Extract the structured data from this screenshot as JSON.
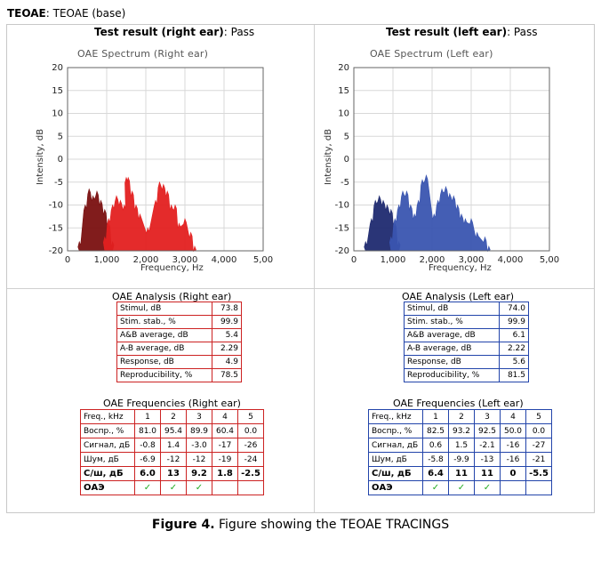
{
  "header": {
    "label": "TEOAE",
    "value": ": TEOAE (base)"
  },
  "right": {
    "result_label": "Test result (right ear)",
    "result_value": ": Pass",
    "chart_title": "OAE Spectrum (Right ear)",
    "analysis_title": "OAE Analysis (Right ear)",
    "analysis": [
      {
        "label": "Stimul, dB",
        "value": "73.8"
      },
      {
        "label": "Stim. stab., %",
        "value": "99.9"
      },
      {
        "label": "A&B average, dB",
        "value": "5.4"
      },
      {
        "label": "A-B average, dB",
        "value": "2.29"
      },
      {
        "label": "Response, dB",
        "value": "4.9"
      },
      {
        "label": "Reproducibility, %",
        "value": "78.5"
      }
    ],
    "freq_title": "OAE Frequencies (Right ear)",
    "freq_rows": [
      {
        "label": "Freq., kHz",
        "cells": [
          "1",
          "2",
          "3",
          "4",
          "5"
        ]
      },
      {
        "label": "Воспр., %",
        "cells": [
          "81.0",
          "95.4",
          "89.9",
          "60.4",
          "0.0"
        ]
      },
      {
        "label": "Сигнал, дБ",
        "cells": [
          "-0.8",
          "1.4",
          "-3.0",
          "-17",
          "-26"
        ]
      },
      {
        "label": "Шум, дБ",
        "cells": [
          "-6.9",
          "-12",
          "-12",
          "-19",
          "-24"
        ]
      },
      {
        "label": "С/ш, дБ",
        "cells": [
          "6.0",
          "13",
          "9.2",
          "1.8",
          "-2.5"
        ]
      },
      {
        "label": "ОАЭ",
        "cells": [
          "✓",
          "✓",
          "✓",
          "",
          ""
        ]
      }
    ]
  },
  "left": {
    "result_label": "Test result (left ear)",
    "result_value": ": Pass",
    "chart_title": "OAE Spectrum (Left ear)",
    "analysis_title": "OAE Analysis (Left ear)",
    "analysis": [
      {
        "label": "Stimul, dB",
        "value": "74.0"
      },
      {
        "label": "Stim. stab., %",
        "value": "99.9"
      },
      {
        "label": "A&B average, dB",
        "value": "6.1"
      },
      {
        "label": "A-B average, dB",
        "value": "2.22"
      },
      {
        "label": "Response, dB",
        "value": "5.6"
      },
      {
        "label": "Reproducibility, %",
        "value": "81.5"
      }
    ],
    "freq_title": "OAE Frequencies (Left ear)",
    "freq_rows": [
      {
        "label": "Freq., kHz",
        "cells": [
          "1",
          "2",
          "3",
          "4",
          "5"
        ]
      },
      {
        "label": "Воспр., %",
        "cells": [
          "82.5",
          "93.2",
          "92.5",
          "50.0",
          "0.0"
        ]
      },
      {
        "label": "Сигнал, дБ",
        "cells": [
          "0.6",
          "1.5",
          "-2.1",
          "-16",
          "-27"
        ]
      },
      {
        "label": "Шум, дБ",
        "cells": [
          "-5.8",
          "-9.9",
          "-13",
          "-16",
          "-21"
        ]
      },
      {
        "label": "С/ш, дБ",
        "cells": [
          "6.4",
          "11",
          "11",
          "0",
          "-5.5"
        ]
      },
      {
        "label": "ОАЭ",
        "cells": [
          "✓",
          "✓",
          "✓",
          "",
          ""
        ]
      }
    ]
  },
  "chart_data": [
    {
      "type": "area",
      "title": "OAE Spectrum (Right ear)",
      "xlabel": "Frequency, Hz",
      "ylabel": "Intensity, dB",
      "xlim": [
        0,
        5000
      ],
      "ylim": [
        -20,
        20
      ],
      "xticks": [
        "0",
        "1,000",
        "2,000",
        "3,000",
        "4,000",
        "5,00"
      ],
      "yticks": [
        "20",
        "15",
        "10",
        "5",
        "0",
        "-5",
        "-10",
        "-15",
        "-20"
      ],
      "grid": true,
      "colors": {
        "noise": "#7a1010",
        "response": "#e32020"
      },
      "series": [
        {
          "x": [
            300,
            450,
            550,
            650,
            750,
            850,
            950,
            1050,
            1150
          ],
          "values": [
            -18,
            -10,
            -6.5,
            -8,
            -7,
            -9,
            -11,
            -14,
            -18
          ]
        },
        {
          "x": [
            950,
            1050,
            1150,
            1250,
            1350,
            1450,
            1500,
            1550,
            1650,
            1750,
            1850,
            2050,
            2250,
            2350,
            2450,
            2550,
            2650,
            2750,
            2850,
            3000,
            3150,
            3250
          ],
          "values": [
            -17,
            -13,
            -10,
            -8,
            -9,
            -10,
            -4,
            -4,
            -7,
            -10,
            -12,
            -15,
            -9,
            -5,
            -5.5,
            -7,
            -10,
            -10,
            -14,
            -13,
            -16,
            -19
          ]
        }
      ]
    },
    {
      "type": "area",
      "title": "OAE Spectrum (Left ear)",
      "xlabel": "Frequency, Hz",
      "ylabel": "Intensity, dB",
      "xlim": [
        0,
        5000
      ],
      "ylim": [
        -20,
        20
      ],
      "xticks": [
        "0",
        "1,000",
        "2,000",
        "3,000",
        "4,000",
        "5,00"
      ],
      "yticks": [
        "20",
        "15",
        "10",
        "5",
        "0",
        "-5",
        "-10",
        "-15",
        "-20"
      ],
      "grid": true,
      "colors": {
        "noise": "#1f2a70",
        "response": "#3a55b0"
      },
      "series": [
        {
          "x": [
            300,
            450,
            550,
            650,
            750,
            850,
            950,
            1050,
            1150
          ],
          "values": [
            -18,
            -13,
            -9,
            -8,
            -9,
            -10,
            -11,
            -14,
            -18
          ]
        },
        {
          "x": [
            950,
            1050,
            1150,
            1250,
            1350,
            1450,
            1550,
            1650,
            1750,
            1850,
            2050,
            2150,
            2250,
            2350,
            2450,
            2550,
            2650,
            2750,
            2850,
            3000,
            3150,
            3350,
            3450
          ],
          "values": [
            -17,
            -13,
            -10,
            -7,
            -7,
            -10,
            -12,
            -9,
            -4.5,
            -3.5,
            -12,
            -9,
            -6.5,
            -6,
            -7.5,
            -8,
            -10,
            -12,
            -13,
            -13,
            -16,
            -17,
            -19
          ]
        }
      ]
    }
  ],
  "caption": {
    "label": "Figure 4.",
    "text": " Figure showing the TEOAE TRACINGS"
  }
}
